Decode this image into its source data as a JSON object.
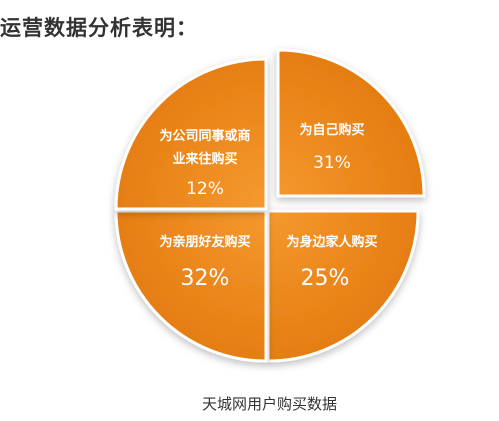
{
  "heading": "运营数据分析表明：",
  "chart_data": {
    "type": "pie",
    "title": "天城网用户购买数据",
    "slices": [
      {
        "label": "为自己购买",
        "label_lines": [
          "为自己购买"
        ],
        "value": 31,
        "value_text": "31%"
      },
      {
        "label": "为身边家人购买",
        "label_lines": [
          "为身边家人购买"
        ],
        "value": 25,
        "value_text": "25%"
      },
      {
        "label": "为亲朋好友购买",
        "label_lines": [
          "为亲朋好友购买"
        ],
        "value": 32,
        "value_text": "32%"
      },
      {
        "label": "为公司同事或商业来往购买",
        "label_lines": [
          "为公司同事或商",
          "业来往购买"
        ],
        "value": 12,
        "value_text": "12%"
      }
    ],
    "colors": {
      "slice": "#f0871a",
      "slice_dark": "#d66c0a",
      "text": "#ffffff"
    }
  }
}
